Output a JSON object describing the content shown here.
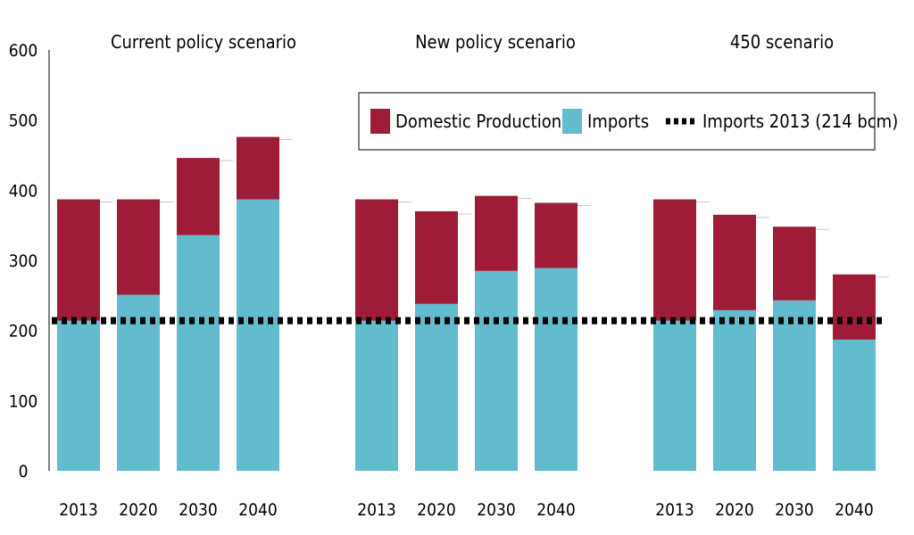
{
  "chart_data": {
    "type": "bar",
    "stacked": true,
    "title": "",
    "xlabel": "",
    "ylabel": "",
    "ylim": [
      0,
      600
    ],
    "yticks": [
      0,
      100,
      200,
      300,
      400,
      500,
      600
    ],
    "grid": false,
    "legend_position": "top-right",
    "groups": [
      {
        "label": "Current policy scenario",
        "categories": [
          "2013",
          "2020",
          "2030",
          "2040"
        ],
        "imports": [
          214,
          251,
          336,
          387
        ],
        "domestic_production": [
          173,
          136,
          110,
          89
        ]
      },
      {
        "label": "New policy scenario",
        "categories": [
          "2013",
          "2020",
          "2030",
          "2040"
        ],
        "imports": [
          214,
          238,
          285,
          289
        ],
        "domestic_production": [
          173,
          132,
          107,
          93
        ]
      },
      {
        "label": "450 scenario",
        "categories": [
          "2013",
          "2020",
          "2030",
          "2040"
        ],
        "imports": [
          214,
          229,
          243,
          187
        ],
        "domestic_production": [
          173,
          136,
          105,
          93
        ]
      }
    ],
    "series": [
      {
        "name": "Domestic Production",
        "key": "domestic_production",
        "color": "#9e1c37",
        "kind": "bar"
      },
      {
        "name": "Imports",
        "key": "imports",
        "color": "#62bccd",
        "kind": "bar"
      },
      {
        "name": "Imports 2013 (214 bcm)",
        "value": 214,
        "color": "#000000",
        "kind": "dotted-line"
      }
    ]
  }
}
